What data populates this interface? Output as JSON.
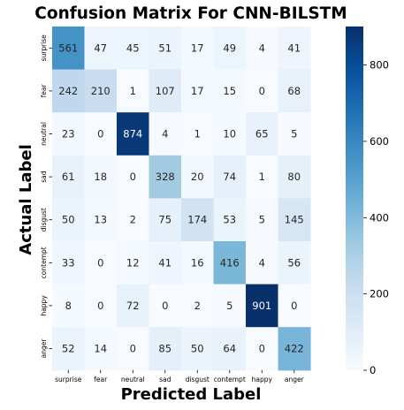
{
  "chart_data": {
    "type": "heatmap",
    "title": "Confusion Matrix For CNN-BILSTM",
    "xlabel": "Predicted Label",
    "ylabel": "Actual Label",
    "x_categories": [
      "surprise",
      "fear",
      "neutral",
      "sad",
      "disgust",
      "contempt",
      "happy",
      "anger"
    ],
    "y_categories": [
      "surprise",
      "fear",
      "neutral",
      "sad",
      "disgust",
      "contempt",
      "happy",
      "anger"
    ],
    "values": [
      [
        561,
        47,
        45,
        51,
        17,
        49,
        4,
        41
      ],
      [
        242,
        210,
        1,
        107,
        17,
        15,
        0,
        68
      ],
      [
        23,
        0,
        874,
        4,
        1,
        10,
        65,
        5
      ],
      [
        61,
        18,
        0,
        328,
        20,
        74,
        1,
        80
      ],
      [
        50,
        13,
        2,
        75,
        174,
        53,
        5,
        145
      ],
      [
        33,
        0,
        12,
        41,
        16,
        416,
        4,
        56
      ],
      [
        8,
        0,
        72,
        0,
        2,
        5,
        901,
        0
      ],
      [
        52,
        14,
        0,
        85,
        50,
        64,
        0,
        422
      ]
    ],
    "colormap": "Blues",
    "colorbar": {
      "range": [
        0,
        901
      ],
      "ticks": [
        0,
        200,
        400,
        600,
        800
      ]
    }
  }
}
